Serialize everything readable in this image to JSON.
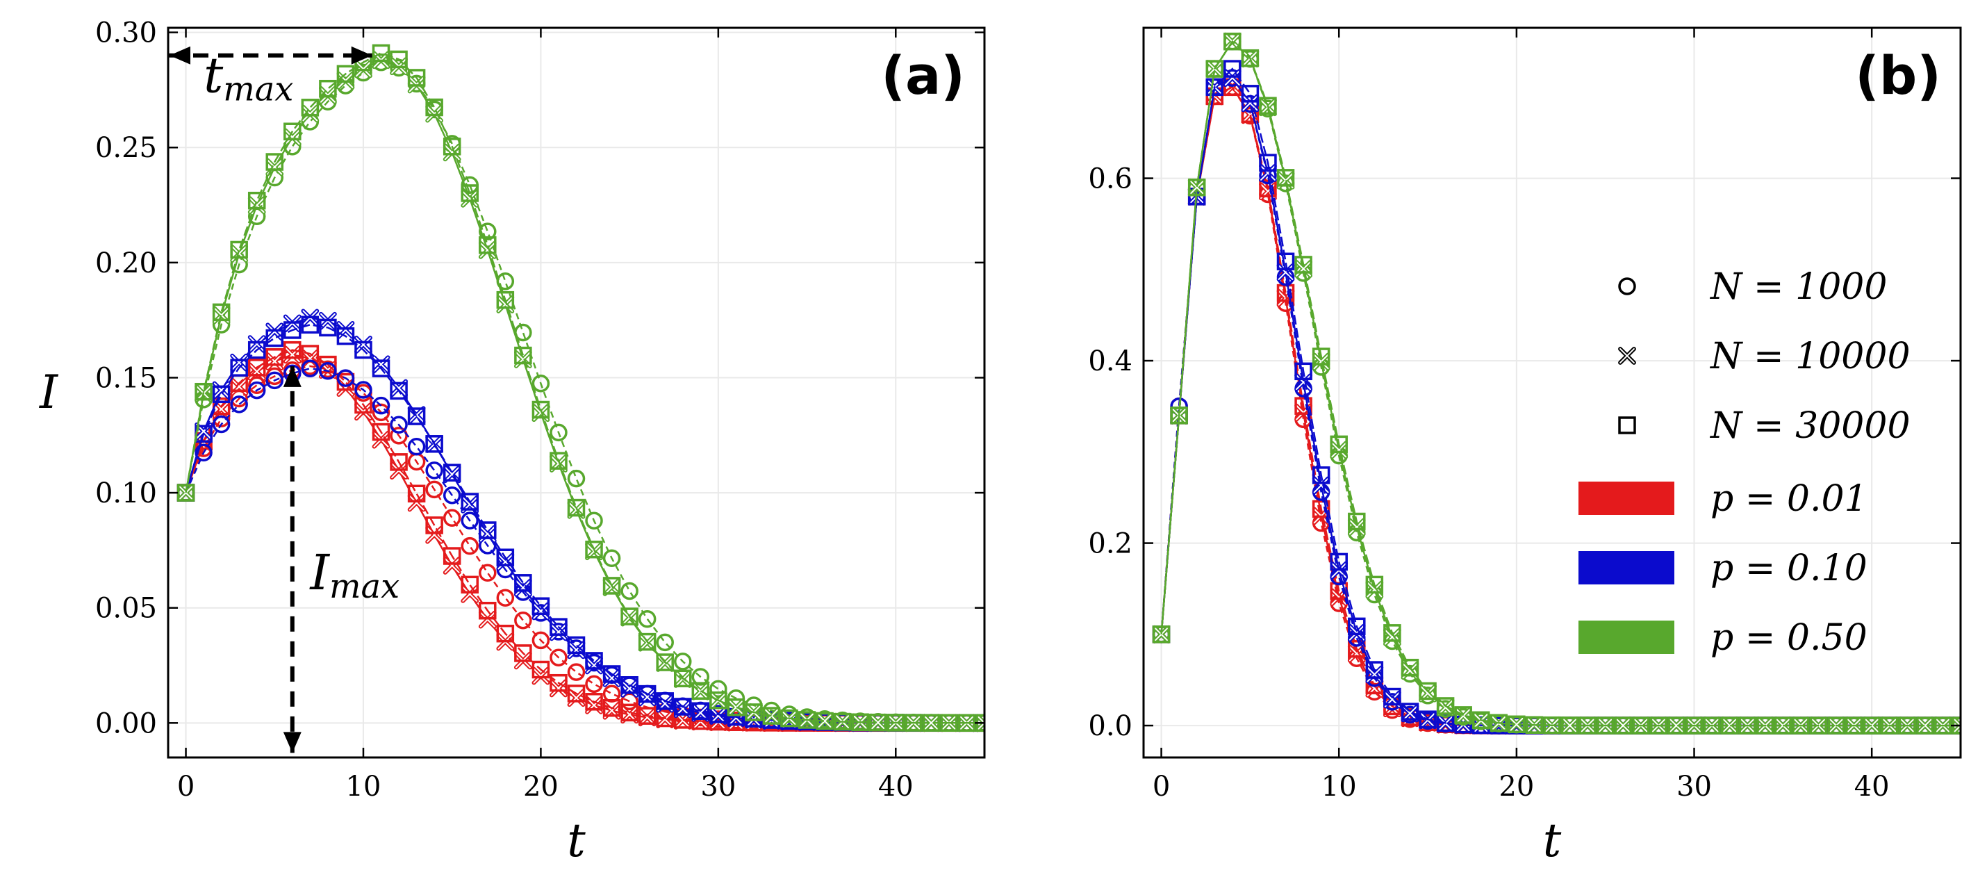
{
  "chart_data": [
    {
      "type": "line",
      "panel_label": "(a)",
      "ylabel": "I",
      "xlabel": "t",
      "xlim": [
        -1,
        45
      ],
      "ylim": [
        -0.015,
        0.302
      ],
      "xticks": [
        0,
        10,
        20,
        30,
        40
      ],
      "xtick_labels": [
        "0",
        "10",
        "20",
        "30",
        "40"
      ],
      "yticks": [
        0.0,
        0.05,
        0.1,
        0.15,
        0.2,
        0.25,
        0.3
      ],
      "ytick_labels": [
        "0.00",
        "0.05",
        "0.10",
        "0.15",
        "0.20",
        "0.25",
        "0.30"
      ],
      "grid": true,
      "annotations": [
        {
          "text": "t_max",
          "base": "t",
          "sub": "max",
          "kind": "horizontal-double-arrow",
          "from": [
            -1,
            0.29
          ],
          "to": [
            10.5,
            0.29
          ],
          "label_at": [
            1,
            0.274
          ]
        },
        {
          "text": "I_max",
          "base": "I",
          "sub": "max",
          "kind": "vertical-double-arrow",
          "from": [
            6,
            0.155
          ],
          "to": [
            6,
            -0.013
          ],
          "label_at": [
            7,
            0.058
          ]
        }
      ],
      "model": {
        "x_start": 0,
        "x_end": 45,
        "i0": 0.1
      },
      "series": [
        {
          "name": "p = 0.01, N = 1000",
          "color": "#e41a1c",
          "marker": "circle",
          "peak_t": 7,
          "peak_I": 0.155,
          "k_rise": 0.4,
          "decay_tau": 7.6
        },
        {
          "name": "p = 0.01, N = 10000",
          "color": "#e41a1c",
          "marker": "cross",
          "peak_t": 6,
          "peak_I": 0.16,
          "k_rise": 0.4,
          "decay_tau": 6.9
        },
        {
          "name": "p = 0.01, N = 30000",
          "color": "#e41a1c",
          "marker": "square",
          "peak_t": 6,
          "peak_I": 0.162,
          "k_rise": 0.4,
          "decay_tau": 7.1
        },
        {
          "name": "p = 0.10, N = 1000",
          "color": "#0b0bcd",
          "marker": "circle",
          "peak_t": 7,
          "peak_I": 0.154,
          "k_rise": 0.35,
          "decay_tau": 8.5
        },
        {
          "name": "p = 0.10, N = 10000",
          "color": "#0b0bcd",
          "marker": "cross",
          "peak_t": 7,
          "peak_I": 0.176,
          "k_rise": 0.4,
          "decay_tau": 8.1
        },
        {
          "name": "p = 0.10, N = 30000",
          "color": "#0b0bcd",
          "marker": "square",
          "peak_t": 7,
          "peak_I": 0.173,
          "k_rise": 0.4,
          "decay_tau": 8.3
        },
        {
          "name": "p = 0.50, N = 1000",
          "color": "#58a82d",
          "marker": "circle",
          "peak_t": 11,
          "peak_I": 0.287,
          "k_rise": 0.22,
          "decay_tau": 7.8
        },
        {
          "name": "p = 0.50, N = 10000",
          "color": "#58a82d",
          "marker": "cross",
          "peak_t": 11,
          "peak_I": 0.288,
          "k_rise": 0.24,
          "decay_tau": 7.3
        },
        {
          "name": "p = 0.50, N = 30000",
          "color": "#58a82d",
          "marker": "square",
          "peak_t": 11,
          "peak_I": 0.291,
          "k_rise": 0.24,
          "decay_tau": 7.3
        }
      ]
    },
    {
      "type": "line",
      "panel_label": "(b)",
      "ylabel": "",
      "xlabel": "t",
      "xlim": [
        -1,
        45
      ],
      "ylim": [
        -0.035,
        0.765
      ],
      "xticks": [
        0,
        10,
        20,
        30,
        40
      ],
      "xtick_labels": [
        "0",
        "10",
        "20",
        "30",
        "40"
      ],
      "yticks": [
        0.0,
        0.2,
        0.4,
        0.6
      ],
      "ytick_labels": [
        "0.0",
        "0.2",
        "0.4",
        "0.6"
      ],
      "grid": true,
      "model": {
        "x_start": 0,
        "x_end": 45,
        "i0": 0.1
      },
      "series": [
        {
          "name": "p = 0.01, N = 1000",
          "color": "#e41a1c",
          "marker": "circle",
          "points": [
            [
              1,
              0.35
            ],
            [
              2,
              0.58
            ],
            [
              3,
              0.69
            ],
            [
              4,
              0.7
            ]
          ],
          "peak_t": 4,
          "peak_I": 0.7,
          "decay_tau": 3.3
        },
        {
          "name": "p = 0.01, N = 10000",
          "color": "#e41a1c",
          "marker": "cross",
          "points": [
            [
              1,
              0.34
            ],
            [
              2,
              0.58
            ],
            [
              3,
              0.69
            ],
            [
              4,
              0.7
            ]
          ],
          "peak_t": 4,
          "peak_I": 0.7,
          "decay_tau": 3.35
        },
        {
          "name": "p = 0.01, N = 30000",
          "color": "#e41a1c",
          "marker": "square",
          "points": [
            [
              1,
              0.34
            ],
            [
              2,
              0.58
            ],
            [
              3,
              0.69
            ],
            [
              4,
              0.7
            ]
          ],
          "peak_t": 4,
          "peak_I": 0.7,
          "decay_tau": 3.4
        },
        {
          "name": "p = 0.10, N = 1000",
          "color": "#0b0bcd",
          "marker": "circle",
          "points": [
            [
              1,
              0.35
            ],
            [
              2,
              0.58
            ],
            [
              3,
              0.7
            ],
            [
              4,
              0.71
            ]
          ],
          "peak_t": 4,
          "peak_I": 0.71,
          "decay_tau": 3.5
        },
        {
          "name": "p = 0.10, N = 10000",
          "color": "#0b0bcd",
          "marker": "cross",
          "points": [
            [
              1,
              0.34
            ],
            [
              2,
              0.58
            ],
            [
              3,
              0.7
            ],
            [
              4,
              0.71
            ]
          ],
          "peak_t": 4,
          "peak_I": 0.71,
          "decay_tau": 3.55
        },
        {
          "name": "p = 0.10, N = 30000",
          "color": "#0b0bcd",
          "marker": "square",
          "points": [
            [
              1,
              0.34
            ],
            [
              2,
              0.58
            ],
            [
              3,
              0.7
            ],
            [
              4,
              0.72
            ]
          ],
          "peak_t": 4,
          "peak_I": 0.72,
          "decay_tau": 3.6
        },
        {
          "name": "p = 0.50, N = 1000",
          "color": "#58a82d",
          "marker": "circle",
          "points": [
            [
              1,
              0.34
            ],
            [
              2,
              0.59
            ],
            [
              3,
              0.72
            ],
            [
              4,
              0.75
            ]
          ],
          "peak_t": 4,
          "peak_I": 0.75,
          "decay_tau": 4.4
        },
        {
          "name": "p = 0.50, N = 10000",
          "color": "#58a82d",
          "marker": "cross",
          "points": [
            [
              1,
              0.34
            ],
            [
              2,
              0.59
            ],
            [
              3,
              0.72
            ],
            [
              4,
              0.75
            ]
          ],
          "peak_t": 4,
          "peak_I": 0.75,
          "decay_tau": 4.45
        },
        {
          "name": "p = 0.50, N = 30000",
          "color": "#58a82d",
          "marker": "square",
          "points": [
            [
              1,
              0.34
            ],
            [
              2,
              0.59
            ],
            [
              3,
              0.72
            ],
            [
              4,
              0.75
            ]
          ],
          "peak_t": 4,
          "peak_I": 0.75,
          "decay_tau": 4.5
        }
      ],
      "legend": {
        "placement": "right",
        "markers": [
          {
            "marker": "circle",
            "label": "N = 1000"
          },
          {
            "marker": "cross",
            "label": "N = 10000"
          },
          {
            "marker": "square",
            "label": "N = 30000"
          }
        ],
        "colors": [
          {
            "color": "#e41a1c",
            "label": "p = 0.01"
          },
          {
            "color": "#0b0bcd",
            "label": "p = 0.10"
          },
          {
            "color": "#58a82d",
            "label": "p = 0.50"
          }
        ]
      }
    }
  ]
}
